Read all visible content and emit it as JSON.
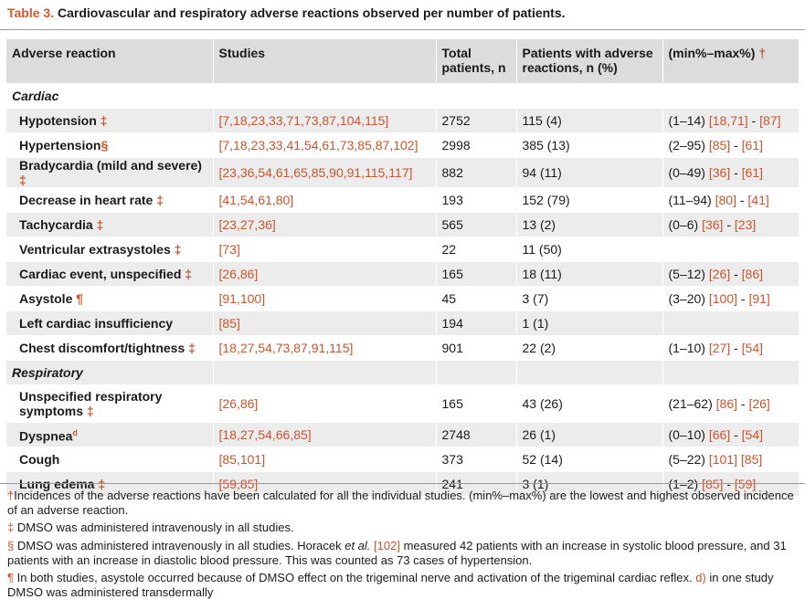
{
  "caption": {
    "label": "Table 3.",
    "text": " Cardiovascular and respiratory adverse reactions observed per number of patients."
  },
  "headers": {
    "reaction": "Adverse reaction",
    "studies": "Studies",
    "total": "Total patients, n",
    "patients": "Patients with adverse reactions, n (%)",
    "range": "(min%–max%)",
    "range_mark": "†"
  },
  "sections": {
    "cardiac": "Cardiac",
    "respiratory": "Respiratory"
  },
  "rows": [
    {
      "name": "Hypotension",
      "mark": " ‡",
      "studies": "[7,18,23,33,71,73,87,104,115]",
      "total": "2752",
      "patients": "115 (4)",
      "range_a": "(1–14) ",
      "range_b": "[18,71]",
      "range_sep": " - ",
      "range_c": "[87]"
    },
    {
      "name": "Hypertension",
      "mark": "§",
      "studies": "[7,18,23,33,41,54,61,73,85,87,102]",
      "total": "2998",
      "patients": "385 (13)",
      "range_a": "(2–95) ",
      "range_b": "[85]",
      "range_sep": " - ",
      "range_c": "[61]"
    },
    {
      "name": "Bradycardia (mild and severe)",
      "mark": " ‡",
      "studies": "[23,36,54,61,65,85,90,91,115,117]",
      "total": "882",
      "patients": "94 (11)",
      "range_a": "(0–49) ",
      "range_b": "[36]",
      "range_sep": " - ",
      "range_c": "[61]"
    },
    {
      "name": "Decrease in heart rate",
      "mark": " ‡",
      "studies": "[41,54,61,80]",
      "total": "193",
      "patients": "152 (79)",
      "range_a": "(11–94) ",
      "range_b": "[80]",
      "range_sep": " - ",
      "range_c": "[41]"
    },
    {
      "name": "Tachycardia",
      "mark": " ‡",
      "studies": "[23,27,36]",
      "total": "565",
      "patients": "13 (2)",
      "range_a": "(0–6) ",
      "range_b": "[36]",
      "range_sep": " - ",
      "range_c": "[23]"
    },
    {
      "name": "Ventricular extrasystoles",
      "mark": " ‡",
      "studies": "[73]",
      "total": "22",
      "patients": "11 (50)",
      "range_a": "",
      "range_b": "",
      "range_sep": "",
      "range_c": ""
    },
    {
      "name": "Cardiac event, unspecified",
      "mark": " ‡",
      "studies": "[26,86]",
      "total": "165",
      "patients": "18 (11)",
      "range_a": "(5–12) ",
      "range_b": "[26]",
      "range_sep": " - ",
      "range_c": "[86]"
    },
    {
      "name": "Asystole",
      "mark": " ¶",
      "studies": "[91,100]",
      "total": "45",
      "patients": "3 (7)",
      "range_a": "(3–20) ",
      "range_b": "[100]",
      "range_sep": " - ",
      "range_c": "[91]"
    },
    {
      "name": "Left cardiac insufficiency",
      "mark": "",
      "studies": "[85]",
      "total": "194",
      "patients": "1 (1)",
      "range_a": "",
      "range_b": "",
      "range_sep": "",
      "range_c": ""
    },
    {
      "name": "Chest discomfort/tightness",
      "mark": " ‡",
      "studies": "[18,27,54,73,87,91,115]",
      "total": "901",
      "patients": "22 (2)",
      "range_a": "(1–10) ",
      "range_b": "[27]",
      "range_sep": " - ",
      "range_c": "[54]"
    },
    {
      "name": "Unspecified respiratory symptoms",
      "mark": " ‡",
      "studies": "[26,86]",
      "total": "165",
      "patients": "43 (26)",
      "range_a": "(21–62) ",
      "range_b": "[86]",
      "range_sep": " - ",
      "range_c": "[26]"
    },
    {
      "name": "Dyspnea",
      "mark": "d",
      "studies": "[18,27,54,66,85]",
      "total": "2748",
      "patients": "26 (1)",
      "range_a": "(0–10) ",
      "range_b": "[66]",
      "range_sep": " - ",
      "range_c": "[54]"
    },
    {
      "name": "Cough",
      "mark": "",
      "studies": "[85,101]",
      "total": "373",
      "patients": "52 (14)",
      "range_a": "(5–22) ",
      "range_b": "[101]",
      "range_sep": " ",
      "range_c": "[85]"
    },
    {
      "name": "Lung edema",
      "mark": " ‡",
      "studies": "[59,85]",
      "total": "241",
      "patients": "3 (1)",
      "range_a": "(1–2) ",
      "range_b": "[85]",
      "range_sep": " - ",
      "range_c": "[59]"
    }
  ],
  "footnotes": {
    "f1_mark": "†",
    "f1": "Incidences of the adverse reactions have been calculated for all the individual studies. (min%–max%) are the lowest and highest observed incidence of an adverse reaction.",
    "f2_mark": "‡",
    "f2": " DMSO was administered intravenously in all studies.",
    "f3_mark": "§",
    "f3_a": " DMSO was administered intravenously in all studies. Horacek ",
    "f3_em": "et al.",
    "f3_ref": "[102]",
    "f3_b": " measured 42 patients with an increase in systolic blood pressure, and 31 patients with an increase in diastolic blood pressure. This was counted as 73 cases of hypertension.",
    "f4_mark": "¶",
    "f4_a": " In both studies, asystole occurred because of DMSO effect on the trigeminal nerve and activation of the trigeminal cardiac reflex. ",
    "f4_d": "d)",
    "f4_b": " in one study DMSO was administered transdermally"
  }
}
